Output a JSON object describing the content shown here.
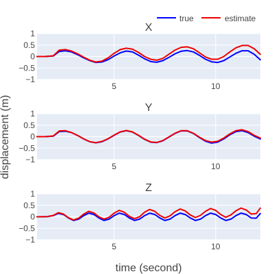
{
  "chart_data": {
    "type": "line",
    "xlabel": "time (second)",
    "ylabel": "displacement (m)",
    "legend": {
      "placement": "top-right",
      "entries": [
        "true",
        "estimate"
      ]
    },
    "colors": {
      "true": "#0000ff",
      "estimate": "#ee0000",
      "plot_bg": "#e5ecf6",
      "grid": "#ffffff"
    },
    "grid": true,
    "xlim": [
      1.2,
      12.2
    ],
    "ylim": [
      -1,
      1
    ],
    "xticks": [
      5,
      10
    ],
    "yticks": [
      1,
      0.5,
      0,
      -0.5,
      -1
    ],
    "ytick_labels": [
      "1",
      "0.5",
      "0",
      "−0.5",
      "−1"
    ],
    "subplots": [
      {
        "title": "X",
        "series": [
          {
            "name": "true",
            "x": [
              1.2,
              1.6,
              2.0,
              2.3,
              2.6,
              2.9,
              3.2,
              3.5,
              3.8,
              4.1,
              4.4,
              4.7,
              5.0,
              5.3,
              5.6,
              5.9,
              6.2,
              6.5,
              6.8,
              7.1,
              7.4,
              7.7,
              8.0,
              8.3,
              8.6,
              8.9,
              9.2,
              9.5,
              9.8,
              10.1,
              10.4,
              10.7,
              11.0,
              11.3,
              11.6,
              11.9,
              12.2
            ],
            "y": [
              0.0,
              0.0,
              0.02,
              0.22,
              0.25,
              0.2,
              0.08,
              -0.06,
              -0.18,
              -0.26,
              -0.24,
              -0.14,
              0.02,
              0.16,
              0.24,
              0.2,
              0.06,
              -0.1,
              -0.22,
              -0.25,
              -0.18,
              -0.04,
              0.12,
              0.23,
              0.26,
              0.2,
              0.05,
              -0.12,
              -0.23,
              -0.26,
              -0.18,
              -0.02,
              0.14,
              0.25,
              0.25,
              0.1,
              -0.14
            ]
          },
          {
            "name": "estimate",
            "x": [
              1.2,
              1.6,
              2.0,
              2.3,
              2.6,
              2.9,
              3.2,
              3.5,
              3.8,
              4.1,
              4.4,
              4.7,
              5.0,
              5.3,
              5.6,
              5.9,
              6.2,
              6.5,
              6.8,
              7.1,
              7.4,
              7.7,
              8.0,
              8.3,
              8.6,
              8.9,
              9.2,
              9.5,
              9.8,
              10.1,
              10.4,
              10.7,
              11.0,
              11.3,
              11.6,
              11.9,
              12.2
            ],
            "y": [
              0.0,
              0.0,
              0.03,
              0.28,
              0.3,
              0.24,
              0.12,
              -0.03,
              -0.16,
              -0.24,
              -0.2,
              -0.06,
              0.14,
              0.3,
              0.36,
              0.32,
              0.18,
              0.0,
              -0.12,
              -0.16,
              -0.08,
              0.1,
              0.28,
              0.4,
              0.42,
              0.34,
              0.16,
              -0.02,
              -0.12,
              -0.12,
              0.0,
              0.2,
              0.38,
              0.48,
              0.48,
              0.34,
              0.1
            ]
          }
        ]
      },
      {
        "title": "Y",
        "series": [
          {
            "name": "true",
            "x": [
              1.2,
              1.6,
              2.0,
              2.3,
              2.6,
              2.9,
              3.2,
              3.5,
              3.8,
              4.1,
              4.4,
              4.7,
              5.0,
              5.3,
              5.6,
              5.9,
              6.2,
              6.5,
              6.8,
              7.1,
              7.4,
              7.7,
              8.0,
              8.3,
              8.6,
              8.9,
              9.2,
              9.5,
              9.8,
              10.1,
              10.4,
              10.7,
              11.0,
              11.3,
              11.6,
              11.9,
              12.2
            ],
            "y": [
              0.0,
              0.0,
              0.02,
              0.22,
              0.24,
              0.18,
              0.05,
              -0.1,
              -0.22,
              -0.27,
              -0.22,
              -0.1,
              0.06,
              0.2,
              0.26,
              0.2,
              0.05,
              -0.12,
              -0.24,
              -0.26,
              -0.18,
              -0.02,
              0.14,
              0.25,
              0.25,
              0.14,
              -0.04,
              -0.2,
              -0.28,
              -0.24,
              -0.1,
              0.08,
              0.22,
              0.26,
              0.18,
              0.02,
              -0.1
            ]
          },
          {
            "name": "estimate",
            "x": [
              1.2,
              1.6,
              2.0,
              2.3,
              2.6,
              2.9,
              3.2,
              3.5,
              3.8,
              4.1,
              4.4,
              4.7,
              5.0,
              5.3,
              5.6,
              5.9,
              6.2,
              6.5,
              6.8,
              7.1,
              7.4,
              7.7,
              8.0,
              8.3,
              8.6,
              8.9,
              9.2,
              9.5,
              9.8,
              10.1,
              10.4,
              10.7,
              11.0,
              11.3,
              11.6,
              11.9,
              12.2
            ],
            "y": [
              0.0,
              0.0,
              0.03,
              0.25,
              0.26,
              0.18,
              0.05,
              -0.1,
              -0.22,
              -0.26,
              -0.21,
              -0.09,
              0.07,
              0.21,
              0.27,
              0.21,
              0.06,
              -0.11,
              -0.23,
              -0.25,
              -0.17,
              -0.01,
              0.15,
              0.26,
              0.26,
              0.15,
              -0.02,
              -0.17,
              -0.24,
              -0.2,
              -0.06,
              0.12,
              0.26,
              0.3,
              0.22,
              0.06,
              -0.06
            ]
          }
        ]
      },
      {
        "title": "Z",
        "series": [
          {
            "name": "true",
            "x": [
              1.2,
              1.7,
              2.0,
              2.25,
              2.5,
              2.75,
              3.0,
              3.25,
              3.5,
              3.75,
              4.0,
              4.25,
              4.5,
              4.75,
              5.0,
              5.25,
              5.5,
              5.75,
              6.0,
              6.25,
              6.5,
              6.75,
              7.0,
              7.25,
              7.5,
              7.75,
              8.0,
              8.25,
              8.5,
              8.75,
              9.0,
              9.25,
              9.5,
              9.75,
              10.0,
              10.25,
              10.5,
              10.75,
              11.0,
              11.25,
              11.5,
              11.75,
              12.0,
              12.2
            ],
            "y": [
              0.0,
              0.01,
              0.05,
              0.15,
              0.1,
              -0.05,
              -0.16,
              -0.1,
              0.05,
              0.16,
              0.1,
              -0.05,
              -0.16,
              -0.1,
              0.05,
              0.16,
              0.1,
              -0.05,
              -0.16,
              -0.1,
              0.05,
              0.16,
              0.1,
              -0.05,
              -0.16,
              -0.1,
              0.05,
              0.16,
              0.1,
              -0.05,
              -0.16,
              -0.1,
              0.05,
              0.16,
              0.1,
              -0.05,
              -0.16,
              -0.1,
              0.05,
              0.16,
              0.1,
              -0.05,
              -0.06,
              0.14
            ]
          },
          {
            "name": "estimate",
            "x": [
              1.2,
              1.7,
              2.0,
              2.25,
              2.5,
              2.75,
              3.0,
              3.25,
              3.5,
              3.75,
              4.0,
              4.25,
              4.5,
              4.75,
              5.0,
              5.25,
              5.5,
              5.75,
              6.0,
              6.25,
              6.5,
              6.75,
              7.0,
              7.25,
              7.5,
              7.75,
              8.0,
              8.25,
              8.5,
              8.75,
              9.0,
              9.25,
              9.5,
              9.75,
              10.0,
              10.25,
              10.5,
              10.75,
              11.0,
              11.25,
              11.5,
              11.75,
              12.0,
              12.2
            ],
            "y": [
              0.0,
              0.01,
              0.06,
              0.18,
              0.12,
              -0.04,
              -0.14,
              -0.06,
              0.12,
              0.24,
              0.17,
              0.0,
              -0.1,
              -0.02,
              0.16,
              0.28,
              0.2,
              0.02,
              -0.08,
              0.0,
              0.2,
              0.32,
              0.24,
              0.06,
              -0.05,
              0.04,
              0.22,
              0.34,
              0.26,
              0.08,
              -0.03,
              0.06,
              0.24,
              0.36,
              0.28,
              0.1,
              -0.02,
              0.08,
              0.26,
              0.38,
              0.3,
              0.12,
              0.14,
              0.38
            ]
          }
        ]
      }
    ]
  }
}
